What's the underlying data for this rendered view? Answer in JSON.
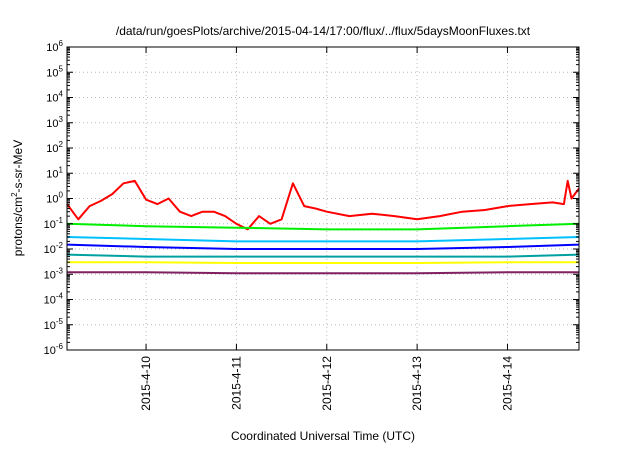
{
  "chart_data": {
    "type": "line",
    "title": "/data/run/goesPlots/archive/2015-04-14/17:00/flux/../flux/5daysMoonFluxes.txt",
    "xlabel": "Coordinated Universal Time (UTC)",
    "ylabel_parts": [
      "protons/cm",
      "2",
      "-s-sr-MeV"
    ],
    "y_scale": "log",
    "ylim": [
      1e-06,
      1000000.0
    ],
    "y_ticks": [
      {
        "base": "10",
        "exp": "-6"
      },
      {
        "base": "10",
        "exp": "-5"
      },
      {
        "base": "10",
        "exp": "-4"
      },
      {
        "base": "10",
        "exp": "-3"
      },
      {
        "base": "10",
        "exp": "-2"
      },
      {
        "base": "10",
        "exp": "-1"
      },
      {
        "base": "10",
        "exp": "0"
      },
      {
        "base": "10",
        "exp": "1"
      },
      {
        "base": "10",
        "exp": "2"
      },
      {
        "base": "10",
        "exp": "3"
      },
      {
        "base": "10",
        "exp": "4"
      },
      {
        "base": "10",
        "exp": "5"
      },
      {
        "base": "10",
        "exp": "6"
      }
    ],
    "xlim": [
      "2015-04-09 03:00",
      "2015-04-14 19:00"
    ],
    "x_ticks": [
      {
        "label": "2015-4-10",
        "value": "2015-04-10 00:00"
      },
      {
        "label": "2015-4-11",
        "value": "2015-04-11 00:00"
      },
      {
        "label": "2015-4-12",
        "value": "2015-04-12 00:00"
      },
      {
        "label": "2015-4-13",
        "value": "2015-04-13 00:00"
      },
      {
        "label": "2015-4-14",
        "value": "2015-04-14 00:00"
      }
    ],
    "grid": true,
    "series": [
      {
        "color": "#ff0000",
        "x": [
          "2015-04-09 03:00",
          "2015-04-09 06:00",
          "2015-04-09 09:00",
          "2015-04-09 12:00",
          "2015-04-09 15:00",
          "2015-04-09 18:00",
          "2015-04-09 21:00",
          "2015-04-10 00:00",
          "2015-04-10 03:00",
          "2015-04-10 06:00",
          "2015-04-10 09:00",
          "2015-04-10 12:00",
          "2015-04-10 15:00",
          "2015-04-10 18:00",
          "2015-04-10 21:00",
          "2015-04-11 00:00",
          "2015-04-11 03:00",
          "2015-04-11 06:00",
          "2015-04-11 09:00",
          "2015-04-11 12:00",
          "2015-04-11 15:00",
          "2015-04-11 18:00",
          "2015-04-11 21:00",
          "2015-04-12 00:00",
          "2015-04-12 06:00",
          "2015-04-12 12:00",
          "2015-04-12 18:00",
          "2015-04-13 00:00",
          "2015-04-13 06:00",
          "2015-04-13 12:00",
          "2015-04-13 18:00",
          "2015-04-14 00:00",
          "2015-04-14 06:00",
          "2015-04-14 12:00",
          "2015-04-14 15:00",
          "2015-04-14 16:00",
          "2015-04-14 17:00",
          "2015-04-14 19:00"
        ],
        "values": [
          0.6,
          0.15,
          0.5,
          0.8,
          1.5,
          4,
          5,
          0.9,
          0.6,
          1.0,
          0.3,
          0.2,
          0.3,
          0.3,
          0.2,
          0.1,
          0.06,
          0.2,
          0.1,
          0.15,
          4,
          0.5,
          0.4,
          0.3,
          0.2,
          0.25,
          0.2,
          0.15,
          0.2,
          0.3,
          0.35,
          0.5,
          0.6,
          0.7,
          0.6,
          5,
          1.0,
          2.5
        ]
      },
      {
        "color": "#00ee00",
        "x": [
          "2015-04-09 03:00",
          "2015-04-10 00:00",
          "2015-04-11 00:00",
          "2015-04-12 00:00",
          "2015-04-13 00:00",
          "2015-04-14 00:00",
          "2015-04-14 19:00"
        ],
        "values": [
          0.1,
          0.08,
          0.07,
          0.06,
          0.06,
          0.08,
          0.1
        ]
      },
      {
        "color": "#00c0ff",
        "x": [
          "2015-04-09 03:00",
          "2015-04-10 00:00",
          "2015-04-11 00:00",
          "2015-04-12 00:00",
          "2015-04-13 00:00",
          "2015-04-14 00:00",
          "2015-04-14 19:00"
        ],
        "values": [
          0.03,
          0.025,
          0.02,
          0.02,
          0.02,
          0.025,
          0.03
        ]
      },
      {
        "color": "#0000ff",
        "x": [
          "2015-04-09 03:00",
          "2015-04-10 00:00",
          "2015-04-11 00:00",
          "2015-04-12 00:00",
          "2015-04-13 00:00",
          "2015-04-14 00:00",
          "2015-04-14 19:00"
        ],
        "values": [
          0.015,
          0.012,
          0.01,
          0.01,
          0.01,
          0.012,
          0.015
        ]
      },
      {
        "color": "#00a0a0",
        "x": [
          "2015-04-09 03:00",
          "2015-04-10 00:00",
          "2015-04-11 00:00",
          "2015-04-12 00:00",
          "2015-04-13 00:00",
          "2015-04-14 00:00",
          "2015-04-14 19:00"
        ],
        "values": [
          0.006,
          0.005,
          0.005,
          0.005,
          0.005,
          0.005,
          0.006
        ]
      },
      {
        "color": "#ffff00",
        "x": [
          "2015-04-09 03:00",
          "2015-04-10 00:00",
          "2015-04-11 00:00",
          "2015-04-12 00:00",
          "2015-04-13 00:00",
          "2015-04-14 00:00",
          "2015-04-14 19:00"
        ],
        "values": [
          0.003,
          0.003,
          0.0028,
          0.0028,
          0.0028,
          0.003,
          0.003
        ]
      },
      {
        "color": "#802060",
        "x": [
          "2015-04-09 03:00",
          "2015-04-10 00:00",
          "2015-04-11 00:00",
          "2015-04-12 00:00",
          "2015-04-13 00:00",
          "2015-04-14 00:00",
          "2015-04-14 19:00"
        ],
        "values": [
          0.0012,
          0.0012,
          0.0011,
          0.0011,
          0.0011,
          0.0012,
          0.0012
        ]
      }
    ]
  }
}
